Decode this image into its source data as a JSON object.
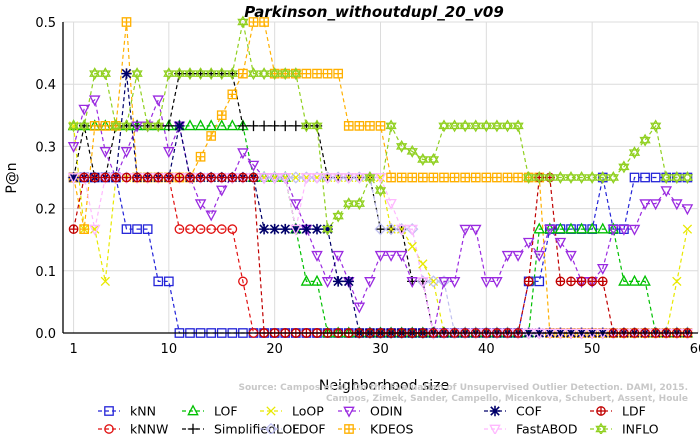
{
  "chart_data": {
    "type": "line",
    "title": "Parkinson_withoutdupl_20_v09",
    "xlabel": "Neighborhood size",
    "ylabel": "P@n",
    "xlim": [
      0,
      60
    ],
    "ylim": [
      0,
      0.5
    ],
    "xticks": [
      "1",
      "10",
      "20",
      "30",
      "40",
      "50",
      "60"
    ],
    "yticks": [
      "0.0",
      "0.1",
      "0.2",
      "0.3",
      "0.4",
      "0.5"
    ],
    "grid": true,
    "legend_position": "bottom",
    "watermark": [
      "Source: Campos et al. On the Evaluation of Unsupervised Outlier Detection. DAMI, 2015.",
      "Campos, Zimek, Sander, Campello, Micenkova, Schubert, Assent, Houle"
    ],
    "series": [
      {
        "name": "kNN",
        "color": "#2424d8",
        "marker": "square",
        "points": [
          [
            1,
            0.25
          ],
          [
            2,
            0.25
          ],
          [
            3,
            0.25
          ],
          [
            4,
            0.25
          ],
          [
            5,
            0.25
          ],
          [
            6,
            0.167
          ],
          [
            7,
            0.167
          ],
          [
            8,
            0.167
          ],
          [
            9,
            0.083
          ],
          [
            10,
            0.083
          ],
          [
            11,
            0
          ],
          [
            12,
            0
          ],
          [
            20,
            0
          ],
          [
            30,
            0
          ],
          [
            40,
            0
          ],
          [
            43,
            0
          ],
          [
            44,
            0.083
          ],
          [
            45,
            0.083
          ],
          [
            46,
            0.167
          ],
          [
            50,
            0.167
          ],
          [
            51,
            0.25
          ],
          [
            52,
            0.167
          ],
          [
            53,
            0.167
          ],
          [
            54,
            0.25
          ],
          [
            59,
            0.25
          ]
        ]
      },
      {
        "name": "kNNW",
        "color": "#e01010",
        "marker": "circle",
        "points": [
          [
            1,
            0.25
          ],
          [
            2,
            0.25
          ],
          [
            5,
            0.25
          ],
          [
            6,
            0.25
          ],
          [
            10,
            0.25
          ],
          [
            11,
            0.167
          ],
          [
            16,
            0.167
          ],
          [
            17,
            0.083
          ],
          [
            18,
            0
          ],
          [
            59,
            0
          ]
        ]
      },
      {
        "name": "LOF",
        "color": "#00c000",
        "marker": "triangle-up",
        "points": [
          [
            1,
            0.333
          ],
          [
            10,
            0.333
          ],
          [
            11,
            0.333
          ],
          [
            16,
            0.333
          ],
          [
            17,
            0.333
          ],
          [
            18,
            0.25
          ],
          [
            21,
            0.25
          ],
          [
            22,
            0.167
          ],
          [
            23,
            0.083
          ],
          [
            24,
            0.083
          ],
          [
            25,
            0
          ],
          [
            44,
            0
          ],
          [
            45,
            0.167
          ],
          [
            50,
            0.167
          ],
          [
            51,
            0.167
          ],
          [
            52,
            0.167
          ],
          [
            53,
            0.083
          ],
          [
            55,
            0.083
          ],
          [
            56,
            0
          ],
          [
            59,
            0
          ]
        ]
      },
      {
        "name": "SimplifiedLOF",
        "color": "#000000",
        "marker": "plus",
        "points": [
          [
            1,
            0.25
          ],
          [
            2,
            0.333
          ],
          [
            3,
            0.25
          ],
          [
            4,
            0.25
          ],
          [
            5,
            0.333
          ],
          [
            6,
            0.333
          ],
          [
            10,
            0.333
          ],
          [
            11,
            0.417
          ],
          [
            16,
            0.417
          ],
          [
            17,
            0.333
          ],
          [
            24,
            0.333
          ],
          [
            25,
            0.25
          ],
          [
            29,
            0.25
          ],
          [
            30,
            0.167
          ],
          [
            32,
            0.167
          ],
          [
            33,
            0.083
          ],
          [
            34,
            0.083
          ],
          [
            35,
            0
          ],
          [
            59,
            0
          ]
        ]
      },
      {
        "name": "LoOP",
        "color": "#e8e800",
        "marker": "x",
        "points": [
          [
            1,
            0.333
          ],
          [
            2,
            0.167
          ],
          [
            3,
            0.167
          ],
          [
            4,
            0.083
          ],
          [
            5,
            0.25
          ],
          [
            10,
            0.25
          ],
          [
            20,
            0.25
          ],
          [
            25,
            0.25
          ],
          [
            30,
            0.25
          ],
          [
            31,
            0.167
          ],
          [
            32,
            0.167
          ],
          [
            35,
            0.083
          ],
          [
            36,
            0
          ],
          [
            57,
            0
          ],
          [
            58,
            0.083
          ],
          [
            59,
            0.167
          ]
        ]
      },
      {
        "name": "LDOF",
        "color": "#c0c0f0",
        "marker": "diamond",
        "points": [
          [
            1,
            0.25
          ],
          [
            5,
            0.25
          ],
          [
            10,
            0.25
          ],
          [
            20,
            0.25
          ],
          [
            25,
            0.25
          ],
          [
            28,
            0.25
          ],
          [
            29,
            0.25
          ],
          [
            30,
            0.167
          ],
          [
            33,
            0.167
          ],
          [
            34,
            0.083
          ],
          [
            36,
            0.083
          ],
          [
            37,
            0
          ],
          [
            59,
            0
          ]
        ]
      },
      {
        "name": "ODIN",
        "color": "#9a2ae0",
        "marker": "triangle-down",
        "points": [
          [
            1,
            0.3
          ],
          [
            2,
            0.36
          ],
          [
            3,
            0.375
          ],
          [
            4,
            0.292
          ],
          [
            5,
            0.25
          ],
          [
            6,
            0.292
          ],
          [
            7,
            0.333
          ],
          [
            8,
            0.333
          ],
          [
            9,
            0.375
          ],
          [
            10,
            0.292
          ],
          [
            11,
            0.333
          ],
          [
            12,
            0.25
          ],
          [
            13,
            0.208
          ],
          [
            14,
            0.19
          ],
          [
            15,
            0.23
          ],
          [
            16,
            0.25
          ],
          [
            17,
            0.29
          ],
          [
            18,
            0.27
          ],
          [
            19,
            0.25
          ],
          [
            20,
            0.25
          ],
          [
            21,
            0.25
          ],
          [
            22,
            0.208
          ],
          [
            23,
            0.167
          ],
          [
            24,
            0.125
          ],
          [
            25,
            0.083
          ],
          [
            26,
            0.125
          ],
          [
            27,
            0.083
          ],
          [
            28,
            0.042
          ],
          [
            29,
            0.083
          ],
          [
            30,
            0.125
          ],
          [
            31,
            0.125
          ],
          [
            32,
            0.125
          ],
          [
            33,
            0.083
          ],
          [
            34,
            0.083
          ],
          [
            35,
            0
          ],
          [
            36,
            0.083
          ],
          [
            37,
            0.083
          ],
          [
            38,
            0.167
          ],
          [
            39,
            0.167
          ],
          [
            40,
            0.083
          ],
          [
            41,
            0.083
          ],
          [
            42,
            0.125
          ],
          [
            43,
            0.125
          ],
          [
            44,
            0.146
          ],
          [
            45,
            0.125
          ],
          [
            46,
            0.167
          ],
          [
            47,
            0.146
          ],
          [
            48,
            0.125
          ],
          [
            49,
            0.083
          ],
          [
            50,
            0.083
          ],
          [
            51,
            0.104
          ],
          [
            52,
            0.167
          ],
          [
            53,
            0.167
          ],
          [
            54,
            0.167
          ],
          [
            55,
            0.208
          ],
          [
            56,
            0.208
          ],
          [
            57,
            0.229
          ],
          [
            58,
            0.208
          ],
          [
            59,
            0.2
          ]
        ]
      },
      {
        "name": "KDEOS",
        "color": "#ffb000",
        "marker": "square-cross",
        "points": [
          [
            1,
            0.25
          ],
          [
            2,
            0.167
          ],
          [
            3,
            0.333
          ],
          [
            4,
            0.333
          ],
          [
            5,
            0.333
          ],
          [
            6,
            0.5
          ],
          [
            7,
            0.25
          ],
          [
            10,
            0.25
          ],
          [
            11,
            0.25
          ],
          [
            12,
            0.25
          ],
          [
            17,
            0.417
          ],
          [
            18,
            0.5
          ],
          [
            19,
            0.5
          ],
          [
            20,
            0.417
          ],
          [
            21,
            0.417
          ],
          [
            25,
            0.417
          ],
          [
            26,
            0.417
          ],
          [
            27,
            0.333
          ],
          [
            30,
            0.333
          ],
          [
            31,
            0.25
          ],
          [
            40,
            0.25
          ],
          [
            45,
            0.25
          ],
          [
            46,
            0
          ],
          [
            59,
            0
          ]
        ]
      },
      {
        "name": "COF",
        "color": "#00006a",
        "marker": "star",
        "points": [
          [
            1,
            0.25
          ],
          [
            2,
            0.25
          ],
          [
            5,
            0.25
          ],
          [
            6,
            0.417
          ],
          [
            7,
            0.25
          ],
          [
            10,
            0.25
          ],
          [
            11,
            0.333
          ],
          [
            12,
            0.25
          ],
          [
            13,
            0.25
          ],
          [
            14,
            0.25
          ],
          [
            15,
            0.25
          ],
          [
            16,
            0.25
          ],
          [
            17,
            0.25
          ],
          [
            18,
            0.25
          ],
          [
            19,
            0.167
          ],
          [
            25,
            0.167
          ],
          [
            26,
            0.083
          ],
          [
            27,
            0.083
          ],
          [
            28,
            0
          ],
          [
            59,
            0
          ]
        ]
      },
      {
        "name": "FastABOD",
        "color": "#ffb8ff",
        "marker": "triangle-down",
        "points": [
          [
            1,
            0.25
          ],
          [
            2,
            0.25
          ],
          [
            3,
            0.167
          ],
          [
            4,
            0.25
          ],
          [
            5,
            0.25
          ],
          [
            6,
            0.25
          ],
          [
            10,
            0.25
          ],
          [
            20,
            0.25
          ],
          [
            21,
            0.25
          ],
          [
            22,
            0.167
          ],
          [
            23,
            0.25
          ],
          [
            30,
            0.25
          ],
          [
            32,
            0.167
          ],
          [
            33,
            0.167
          ],
          [
            34,
            0.083
          ],
          [
            35,
            0
          ],
          [
            59,
            0
          ]
        ]
      },
      {
        "name": "LDF",
        "color": "#c00000",
        "marker": "circle-plus",
        "points": [
          [
            1,
            0.167
          ],
          [
            2,
            0.25
          ],
          [
            5,
            0.25
          ],
          [
            10,
            0.25
          ],
          [
            11,
            0.25
          ],
          [
            17,
            0.25
          ],
          [
            18,
            0.25
          ],
          [
            19,
            0
          ],
          [
            43,
            0
          ],
          [
            44,
            0.083
          ],
          [
            45,
            0.25
          ],
          [
            46,
            0.25
          ],
          [
            47,
            0.083
          ],
          [
            48,
            0.083
          ],
          [
            49,
            0.083
          ],
          [
            50,
            0.083
          ],
          [
            51,
            0.083
          ],
          [
            52,
            0
          ],
          [
            59,
            0
          ]
        ]
      },
      {
        "name": "INFLO",
        "color": "#90d020",
        "marker": "star6",
        "points": [
          [
            1,
            0.333
          ],
          [
            2,
            0.333
          ],
          [
            3,
            0.417
          ],
          [
            4,
            0.417
          ],
          [
            5,
            0.333
          ],
          [
            6,
            0.333
          ],
          [
            7,
            0.417
          ],
          [
            8,
            0.333
          ],
          [
            9,
            0.333
          ],
          [
            10,
            0.417
          ],
          [
            11,
            0.417
          ],
          [
            16,
            0.417
          ],
          [
            17,
            0.5
          ],
          [
            18,
            0.417
          ],
          [
            19,
            0.417
          ],
          [
            20,
            0.417
          ],
          [
            21,
            0.417
          ],
          [
            22,
            0.417
          ],
          [
            23,
            0.333
          ],
          [
            24,
            0.333
          ],
          [
            25,
            0.167
          ],
          [
            26,
            0.188
          ],
          [
            27,
            0.208
          ],
          [
            28,
            0.208
          ],
          [
            29,
            0.25
          ],
          [
            30,
            0.229
          ],
          [
            31,
            0.333
          ],
          [
            32,
            0.3
          ],
          [
            33,
            0.292
          ],
          [
            34,
            0.279
          ],
          [
            35,
            0.279
          ],
          [
            36,
            0.333
          ],
          [
            37,
            0.333
          ],
          [
            40,
            0.333
          ],
          [
            41,
            0.333
          ],
          [
            42,
            0.333
          ],
          [
            43,
            0.333
          ],
          [
            44,
            0.25
          ],
          [
            45,
            0.25
          ],
          [
            46,
            0.25
          ],
          [
            47,
            0.25
          ],
          [
            48,
            0.25
          ],
          [
            49,
            0.25
          ],
          [
            50,
            0.25
          ],
          [
            51,
            0.25
          ],
          [
            52,
            0.25
          ],
          [
            53,
            0.267
          ],
          [
            54,
            0.29
          ],
          [
            55,
            0.31
          ],
          [
            56,
            0.333
          ],
          [
            57,
            0.25
          ],
          [
            58,
            0.25
          ],
          [
            59,
            0.25
          ]
        ]
      }
    ]
  }
}
